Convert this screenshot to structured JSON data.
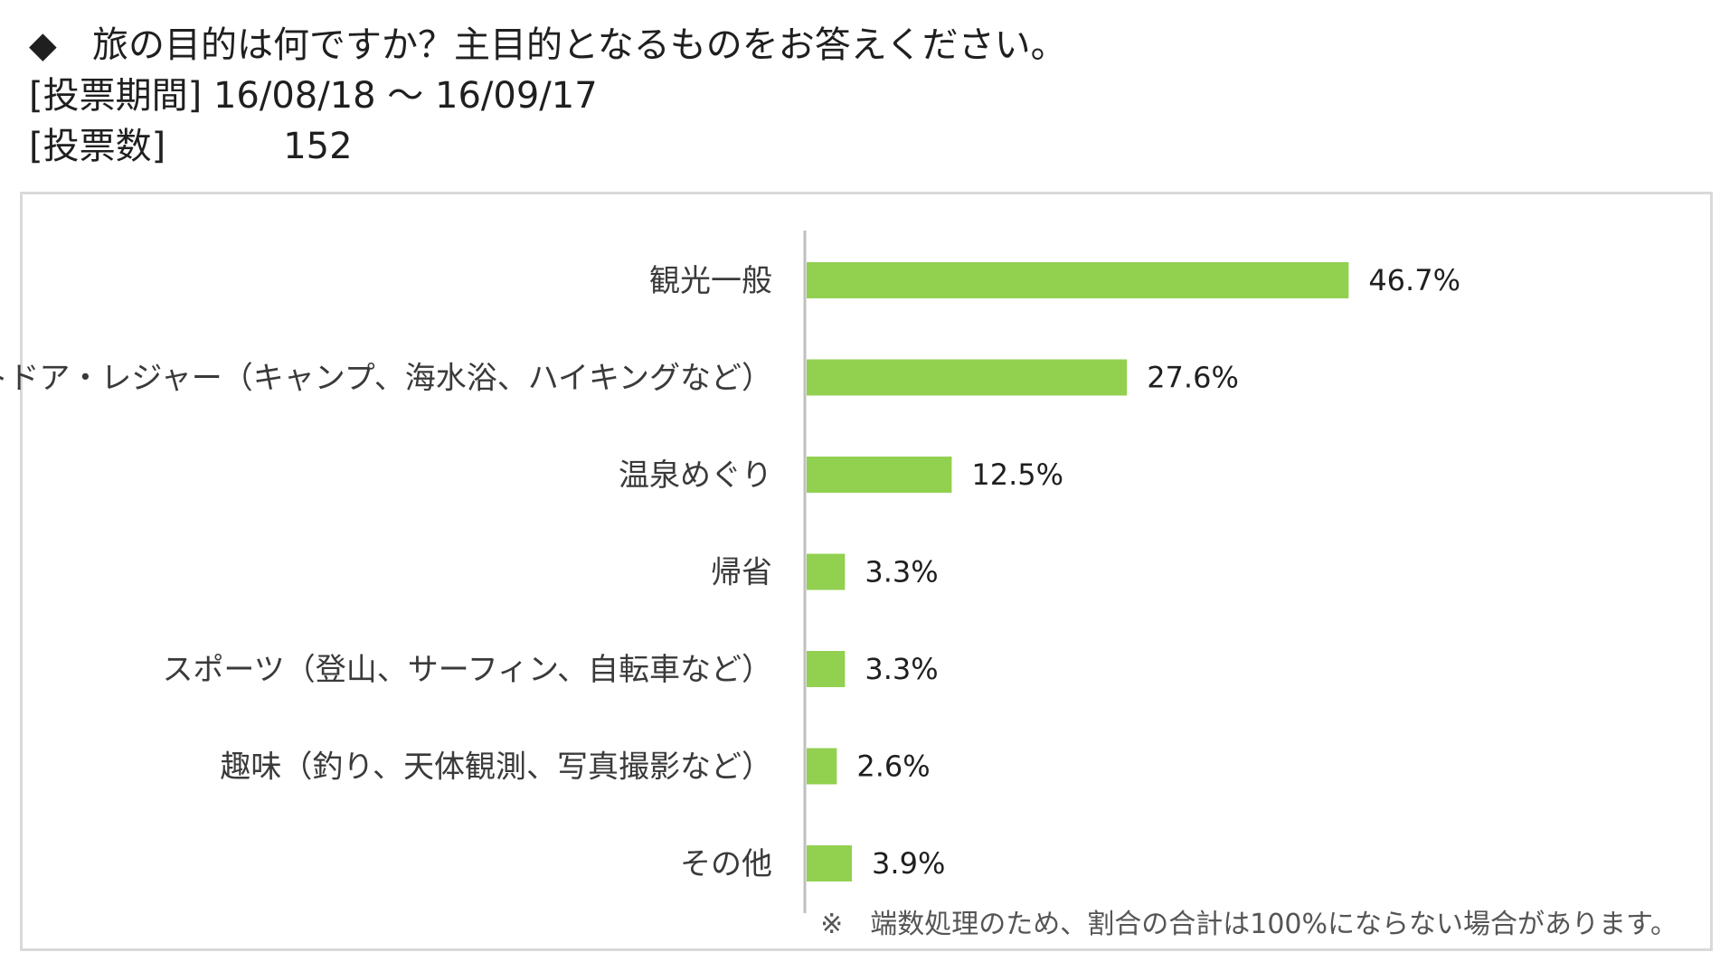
{
  "header": {
    "question_marker": "◆",
    "question": "旅の目的は何ですか？主目的となるものをお答えください。",
    "period_label": "[投票期間]",
    "period_value": "16/08/18 ～ 16/09/17",
    "count_label": "[投票数]",
    "count_value": "152"
  },
  "chart_data": {
    "type": "bar",
    "orientation": "horizontal",
    "categories": [
      "観光一般",
      "アウトドア・レジャー（キャンプ、海水浴、ハイキングなど）",
      "温泉めぐり",
      "帰省",
      "スポーツ（登山、サーフィン、自転車など）",
      "趣味（釣り、天体観測、写真撮影など）",
      "その他"
    ],
    "values": [
      46.7,
      27.6,
      12.5,
      3.3,
      3.3,
      2.6,
      3.9
    ],
    "value_labels": [
      "46.7%",
      "27.6%",
      "12.5%",
      "3.3%",
      "3.3%",
      "2.6%",
      "3.9%"
    ],
    "xlim": [
      0,
      60
    ],
    "bar_color": "#92d050",
    "axis_color": "#bfbfbf",
    "grid": false,
    "note": "※　端数処理のため、割合の合計は100%にならない場合があります。"
  }
}
